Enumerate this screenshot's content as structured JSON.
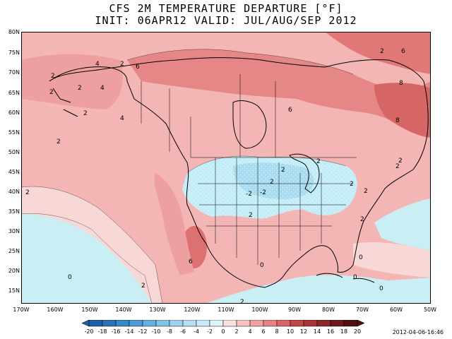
{
  "title_line1": "CFS 2M TEMPERATURE DEPARTURE [°F]",
  "title_line2": "INIT: 06APR12 VALID: JUL/AUG/SEP 2012",
  "lat_labels": [
    "80N",
    "75N",
    "70N",
    "65N",
    "60N",
    "55N",
    "50N",
    "45N",
    "40N",
    "35N",
    "30N",
    "25N",
    "20N",
    "15N"
  ],
  "lon_labels": [
    "170W",
    "160W",
    "150W",
    "140W",
    "130W",
    "120W",
    "110W",
    "100W",
    "90W",
    "80W",
    "70W",
    "60W",
    "50W"
  ],
  "colorbar": {
    "labels": [
      "-20",
      "-18",
      "-16",
      "-14",
      "-12",
      "-10",
      "-8",
      "-6",
      "-4",
      "-2",
      "0",
      "2",
      "4",
      "6",
      "8",
      "10",
      "12",
      "14",
      "16",
      "18",
      "20"
    ],
    "colors": [
      "#1f5fa8",
      "#2a72b8",
      "#3687c8",
      "#4d9cd6",
      "#66b0e0",
      "#80c2e8",
      "#9cd2f0",
      "#b4def4",
      "#c8e8f7",
      "#dcf3fa",
      "#fbe0e0",
      "#f7c3c3",
      "#f0a1a1",
      "#e68282",
      "#d86464",
      "#c24848",
      "#a83535",
      "#8e2727",
      "#6f1a1a",
      "#521010"
    ]
  },
  "contour_labels": [
    "2",
    "4",
    "2",
    "6",
    "2",
    "4",
    "2",
    "2",
    "6",
    "8",
    "8",
    "6",
    "2",
    "2",
    "4",
    "2",
    "-2",
    "-2",
    "2",
    "2",
    "2",
    "6",
    "2",
    "0",
    "0",
    "0",
    "0",
    "2",
    "0",
    "2",
    "2",
    "2",
    "2",
    "2",
    "2"
  ],
  "timestamp": "2012-04-06-16:46"
}
